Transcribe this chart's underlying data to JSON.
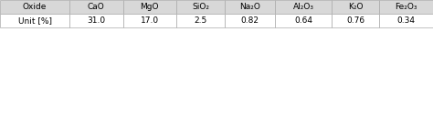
{
  "headers": [
    "Oxide",
    "CaO",
    "MgO",
    "SiO₂",
    "Na₂O",
    "Al₂O₃",
    "K₂O",
    "Fe₂O₃"
  ],
  "row_label": "Unit [%]",
  "values": [
    "31.0",
    "17.0",
    "2.5",
    "0.82",
    "0.64",
    "0.76",
    "0.34"
  ],
  "header_bg": "#d8d8d8",
  "row_bg": "#ffffff",
  "line_color": "#aaaaaa",
  "text_color": "#000000",
  "font_size": 6.5,
  "fig_width": 4.74,
  "fig_height": 1.52,
  "fig_bg": "#ffffff",
  "col_ratios": [
    1.3,
    1.0,
    1.0,
    0.9,
    0.95,
    1.05,
    0.9,
    1.0
  ]
}
